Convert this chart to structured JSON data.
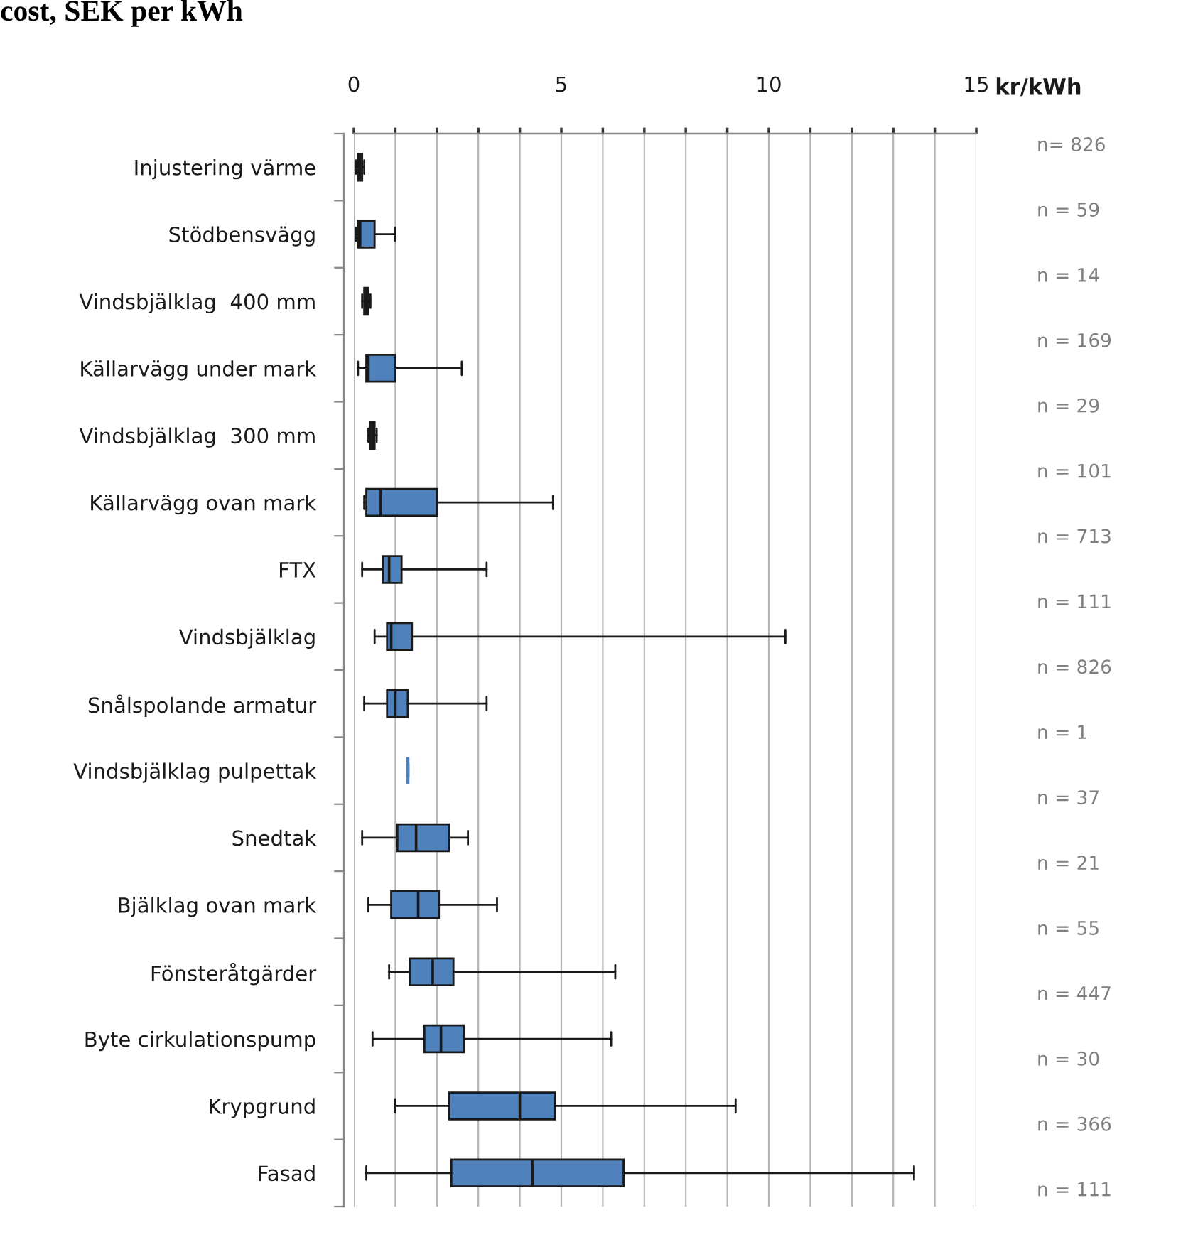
{
  "chart_data": {
    "type": "box",
    "title": "cost, SEK per kWh",
    "xlabel": "kr/kWh",
    "orientation": "horizontal",
    "categories": [
      "Injustering värme",
      "Stödbensvägg",
      "Vindsbjälklag  400 mm",
      "Källarvägg under mark",
      "Vindsbjälklag  300 mm",
      "Källarvägg ovan mark",
      "FTX",
      "Vindsbjälklag",
      "Snålspolande armatur",
      "Vindsbjälklag pulpettak",
      "Snedtak",
      "Bjälklag ovan mark",
      "Fönsteråtgärder",
      "Byte cirkulationspump",
      "Krypgrund",
      "Fasad"
    ],
    "series": [
      {
        "color": "#4f81bd",
        "boxes": [
          {
            "low": 0.05,
            "q1": 0.1,
            "median": 0.15,
            "q3": 0.2,
            "high": 0.25
          },
          {
            "low": 0.05,
            "q1": 0.1,
            "median": 0.15,
            "q3": 0.5,
            "high": 1.0
          },
          {
            "low": 0.2,
            "q1": 0.25,
            "median": 0.3,
            "q3": 0.35,
            "high": 0.4
          },
          {
            "low": 0.1,
            "q1": 0.3,
            "median": 0.35,
            "q3": 1.0,
            "high": 2.6
          },
          {
            "low": 0.35,
            "q1": 0.4,
            "median": 0.45,
            "q3": 0.5,
            "high": 0.55
          },
          {
            "low": 0.25,
            "q1": 0.3,
            "median": 0.65,
            "q3": 2.0,
            "high": 4.8
          },
          {
            "low": 0.2,
            "q1": 0.7,
            "median": 0.85,
            "q3": 1.15,
            "high": 3.2
          },
          {
            "low": 0.5,
            "q1": 0.8,
            "median": 0.9,
            "q3": 1.4,
            "high": 10.4
          },
          {
            "low": 0.25,
            "q1": 0.8,
            "median": 1.0,
            "q3": 1.3,
            "high": 3.2
          },
          {
            "low": 1.3,
            "q1": 1.3,
            "median": 1.3,
            "q3": 1.3,
            "high": 1.3
          },
          {
            "low": 0.2,
            "q1": 1.05,
            "median": 1.5,
            "q3": 2.3,
            "high": 2.75
          },
          {
            "low": 0.35,
            "q1": 0.9,
            "median": 1.55,
            "q3": 2.05,
            "high": 3.45
          },
          {
            "low": 0.85,
            "q1": 1.35,
            "median": 1.9,
            "q3": 2.4,
            "high": 6.3
          },
          {
            "low": 0.45,
            "q1": 1.7,
            "median": 2.1,
            "q3": 2.65,
            "high": 6.2
          },
          {
            "low": 1.0,
            "q1": 2.3,
            "median": 4.0,
            "q3": 4.85,
            "high": 9.2
          },
          {
            "low": 0.3,
            "q1": 2.35,
            "median": 4.3,
            "q3": 6.5,
            "high": 13.5
          }
        ]
      }
    ],
    "xlim": [
      0,
      15
    ],
    "xticks": [
      0,
      {
        "value": 1,
        "label": null
      },
      {
        "value": 2,
        "label": null
      },
      {
        "value": 3,
        "label": null
      },
      {
        "value": 4,
        "label": null
      },
      5,
      {
        "value": 6,
        "label": null
      },
      {
        "value": 7,
        "label": null
      },
      {
        "value": 8,
        "label": null
      },
      {
        "value": 9,
        "label": null
      },
      10,
      {
        "value": 11,
        "label": null
      },
      {
        "value": 12,
        "label": null
      },
      {
        "value": 13,
        "label": null
      },
      {
        "value": 14,
        "label": null
      },
      15
    ],
    "grid": "x",
    "annotations": [
      "n= 826",
      "n = 59",
      "n = 14",
      "n = 169",
      "n = 29",
      "n = 101",
      "n = 713",
      "n = 111",
      "n = 826",
      "n = 1",
      "n = 37",
      "n = 21",
      "n = 55",
      "n = 447",
      "n = 30",
      "n = 366",
      "n = 111"
    ]
  }
}
